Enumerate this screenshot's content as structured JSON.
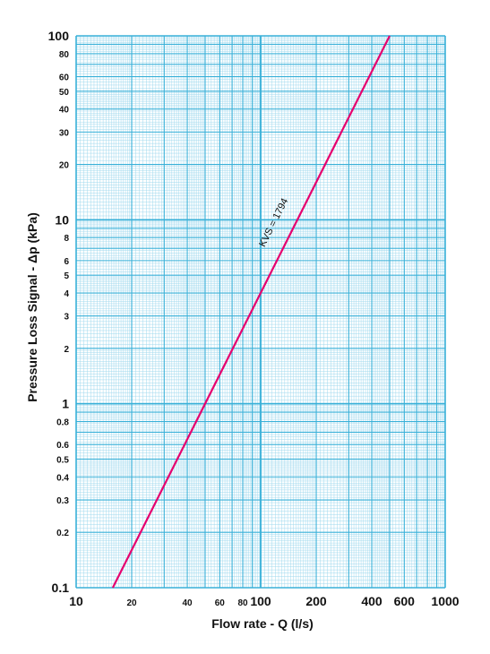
{
  "chart_data": {
    "type": "line",
    "x_scale": "log",
    "y_scale": "log",
    "xlim": [
      10,
      1000
    ],
    "ylim": [
      0.1,
      100
    ],
    "xlabel": "Flow rate - Q (l/s)",
    "ylabel": "Pressure Loss Signal - Δp (kPa)",
    "x_ticks": [
      {
        "value": 10,
        "label": "10",
        "major": true
      },
      {
        "value": 20,
        "label": "20",
        "major": false
      },
      {
        "value": 40,
        "label": "40",
        "major": false
      },
      {
        "value": 60,
        "label": "60",
        "major": false
      },
      {
        "value": 80,
        "label": "80",
        "major": false
      },
      {
        "value": 100,
        "label": "100",
        "major": true
      },
      {
        "value": 200,
        "label": "200",
        "major": true
      },
      {
        "value": 400,
        "label": "400",
        "major": true
      },
      {
        "value": 600,
        "label": "600",
        "major": true
      },
      {
        "value": 1000,
        "label": "1000",
        "major": true
      }
    ],
    "y_ticks": [
      {
        "value": 0.1,
        "label": "0.1",
        "major": true
      },
      {
        "value": 0.2,
        "label": "0.2",
        "major": false
      },
      {
        "value": 0.3,
        "label": "0.3",
        "major": false
      },
      {
        "value": 0.4,
        "label": "0.4",
        "major": false
      },
      {
        "value": 0.5,
        "label": "0.5",
        "major": false
      },
      {
        "value": 0.6,
        "label": "0.6",
        "major": false
      },
      {
        "value": 0.8,
        "label": "0.8",
        "major": false
      },
      {
        "value": 1,
        "label": "1",
        "major": true
      },
      {
        "value": 2,
        "label": "2",
        "major": false
      },
      {
        "value": 3,
        "label": "3",
        "major": false
      },
      {
        "value": 4,
        "label": "4",
        "major": false
      },
      {
        "value": 5,
        "label": "5",
        "major": false
      },
      {
        "value": 6,
        "label": "6",
        "major": false
      },
      {
        "value": 8,
        "label": "8",
        "major": false
      },
      {
        "value": 10,
        "label": "10",
        "major": true
      },
      {
        "value": 20,
        "label": "20",
        "major": false
      },
      {
        "value": 30,
        "label": "30",
        "major": false
      },
      {
        "value": 40,
        "label": "40",
        "major": false
      },
      {
        "value": 50,
        "label": "50",
        "major": false
      },
      {
        "value": 60,
        "label": "60",
        "major": false
      },
      {
        "value": 80,
        "label": "80",
        "major": false
      },
      {
        "value": 100,
        "label": "100",
        "major": true
      }
    ],
    "series": [
      {
        "label": "KVS = 1794",
        "color": "#e5006e",
        "points": [
          [
            15.8,
            0.1
          ],
          [
            500,
            100
          ]
        ]
      }
    ],
    "grid": true,
    "colors": {
      "grid": "#38b0d8",
      "grid_minor": "#9fd8ee",
      "line": "#e5006e"
    }
  }
}
